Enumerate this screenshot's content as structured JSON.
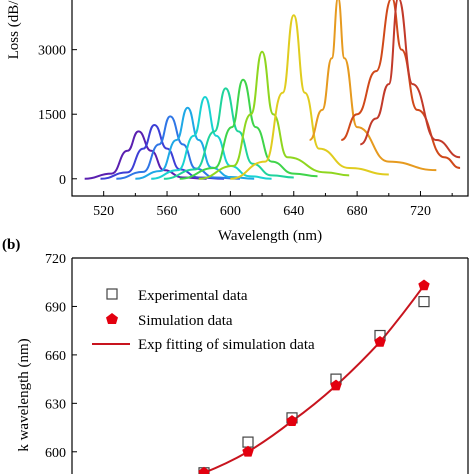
{
  "chart_data": [
    {
      "type": "line",
      "panel": "a",
      "xlabel": "Wavelength (nm)",
      "ylabel": "Loss (dB/",
      "xlim": [
        500,
        750
      ],
      "ylim": [
        -400,
        4200
      ],
      "xticks": [
        520,
        560,
        600,
        640,
        680,
        720
      ],
      "yticks": [
        0,
        1500,
        3000
      ],
      "series": [
        {
          "color": "#5a1fb0",
          "x": [
            508,
            525,
            535,
            542,
            550,
            558,
            570,
            585
          ],
          "y": [
            0,
            120,
            650,
            1100,
            650,
            200,
            30,
            0
          ]
        },
        {
          "color": "#3d3fd6",
          "x": [
            518,
            535,
            545,
            552,
            560,
            568,
            580,
            596
          ],
          "y": [
            0,
            150,
            700,
            1250,
            700,
            220,
            30,
            0
          ]
        },
        {
          "color": "#2f76e6",
          "x": [
            528,
            545,
            555,
            562,
            570,
            578,
            590,
            606
          ],
          "y": [
            0,
            160,
            800,
            1450,
            800,
            240,
            30,
            0
          ]
        },
        {
          "color": "#1fa8e6",
          "x": [
            540,
            556,
            566,
            573,
            580,
            588,
            600,
            615
          ],
          "y": [
            0,
            180,
            900,
            1650,
            900,
            260,
            40,
            0
          ]
        },
        {
          "color": "#19d2d2",
          "x": [
            550,
            567,
            577,
            584,
            591,
            600,
            612,
            626
          ],
          "y": [
            0,
            200,
            1000,
            1900,
            1000,
            300,
            60,
            0
          ]
        },
        {
          "color": "#1fd39c",
          "x": [
            558,
            578,
            590,
            597,
            605,
            614,
            626,
            640
          ],
          "y": [
            0,
            220,
            1100,
            2100,
            1100,
            350,
            80,
            30
          ]
        },
        {
          "color": "#3fd44a",
          "x": [
            568,
            590,
            601,
            608,
            616,
            626,
            640,
            655
          ],
          "y": [
            0,
            250,
            1200,
            2300,
            1200,
            400,
            120,
            60
          ]
        },
        {
          "color": "#8fd61f",
          "x": [
            580,
            602,
            613,
            620,
            627,
            636,
            660,
            675
          ],
          "y": [
            0,
            300,
            1500,
            2950,
            1500,
            500,
            150,
            80
          ]
        },
        {
          "color": "#e0cc1f",
          "x": [
            600,
            622,
            633,
            640,
            647,
            656,
            675,
            700
          ],
          "y": [
            0,
            400,
            2000,
            3800,
            2000,
            700,
            250,
            100
          ]
        },
        {
          "color": "#e69a1f",
          "x": [
            650,
            658,
            664,
            668,
            672,
            680,
            700,
            730
          ],
          "y": [
            900,
            1600,
            2800,
            4200,
            2800,
            1200,
            400,
            200
          ]
        },
        {
          "color": "#d0491a",
          "x": [
            670,
            680,
            692,
            702,
            708,
            718,
            735,
            745
          ],
          "y": [
            900,
            1500,
            2500,
            4200,
            3000,
            1600,
            500,
            250
          ]
        },
        {
          "color": "#c23a2a",
          "x": [
            682,
            692,
            700,
            706,
            715,
            730,
            745
          ],
          "y": [
            800,
            1400,
            2200,
            4200,
            2200,
            900,
            500
          ]
        }
      ]
    },
    {
      "type": "scatter",
      "panel": "b",
      "panel_label": "(b)",
      "ylabel": "k wavelength (nm)",
      "ylim": [
        585,
        720
      ],
      "yticks": [
        600,
        630,
        660,
        690,
        720
      ],
      "x": [
        1,
        2,
        3,
        4,
        5,
        6,
        7,
        8
      ],
      "xlim": [
        0,
        9
      ],
      "series": [
        {
          "name": "Experimental data",
          "marker": "open-square",
          "values": [
            587,
            606,
            621,
            645,
            672,
            693
          ]
        },
        {
          "name": "Simulation data",
          "marker": "red-pentagon",
          "values": [
            587,
            600,
            619,
            641,
            668,
            703
          ]
        },
        {
          "name": "Exp fitting of simulation data",
          "marker": "red-line",
          "values": [
            587,
            600,
            619,
            641,
            668,
            703
          ]
        }
      ],
      "marker_x": [
        3,
        4,
        5,
        6,
        7,
        8
      ],
      "legend_loc": "upper-left"
    }
  ]
}
